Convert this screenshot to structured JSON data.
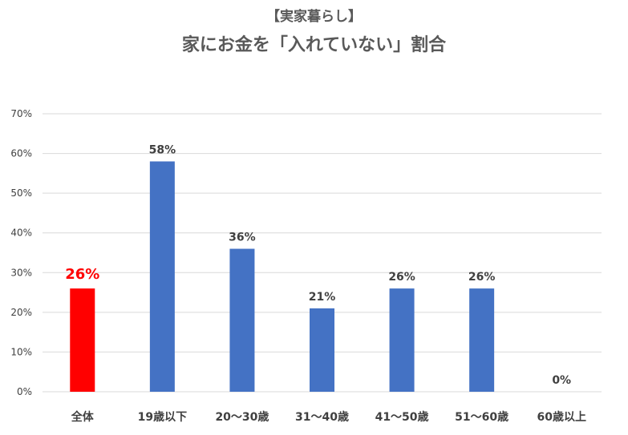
{
  "chart_data": {
    "type": "bar",
    "subtitle": "【実家暮らし】",
    "title": "家にお金を「入れていない」割合",
    "categories": [
      "全体",
      "19歳以下",
      "20～30歳",
      "31～40歳",
      "41～50歳",
      "51～60歳",
      "60歳以上"
    ],
    "values": [
      26,
      58,
      36,
      21,
      26,
      26,
      0
    ],
    "data_labels": [
      "26%",
      "58%",
      "36%",
      "21%",
      "26%",
      "26%",
      "0%"
    ],
    "ylim": [
      0,
      70
    ],
    "y_ticks": [
      "0%",
      "10%",
      "20%",
      "30%",
      "40%",
      "50%",
      "60%",
      "70%"
    ],
    "grid": true,
    "colors": {
      "highlight": "#ff0000",
      "bar": "#4472c4",
      "grid": "#d9d9d9",
      "text": "#404040",
      "title": "#595959"
    },
    "highlight_index": 0
  }
}
